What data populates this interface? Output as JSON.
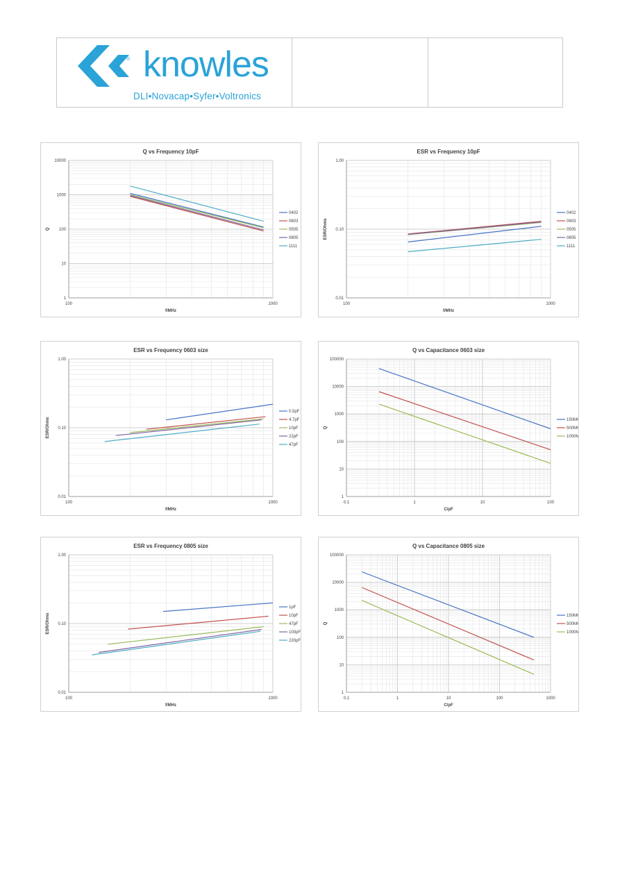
{
  "header": {
    "brand": "knowles",
    "tagline": "DLI•Novacap•Syfer•Voltronics",
    "reg_mark": "®",
    "brand_color": "#2aa3d8"
  },
  "chart_data": [
    {
      "type": "line",
      "title": "Q vs Frequency 10pF",
      "xlabel": "f/MHz",
      "ylabel": "Q",
      "xscale": "log",
      "yscale": "log",
      "xlim": [
        100,
        1000
      ],
      "ylim": [
        1,
        10000
      ],
      "xticks": [
        "100",
        "1000"
      ],
      "yticks": [
        "1",
        "10",
        "100",
        "1000",
        "10000"
      ],
      "legend_position": "right",
      "series": [
        {
          "name": "0402",
          "color": "#4472c4",
          "x": [
            200,
            900
          ],
          "y": [
            1100,
            115
          ]
        },
        {
          "name": "0603",
          "color": "#c0504d",
          "x": [
            200,
            900
          ],
          "y": [
            900,
            88
          ]
        },
        {
          "name": "0505",
          "color": "#9bbb59",
          "x": [
            200,
            900
          ],
          "y": [
            1000,
            110
          ]
        },
        {
          "name": "0805",
          "color": "#8064a2",
          "x": [
            200,
            900
          ],
          "y": [
            950,
            95
          ]
        },
        {
          "name": "1111",
          "color": "#4bacc6",
          "x": [
            200,
            900
          ],
          "y": [
            1800,
            170
          ]
        }
      ]
    },
    {
      "type": "line",
      "title": "ESR vs Frequency 10pF",
      "xlabel": "f/MHz",
      "ylabel": "ESR/Ohms",
      "xscale": "log",
      "yscale": "log",
      "xlim": [
        100,
        1000
      ],
      "ylim": [
        0.01,
        1
      ],
      "xticks": [
        "100",
        "1000"
      ],
      "yticks": [
        "0.01",
        "0.10",
        "1.00"
      ],
      "legend_position": "right",
      "series": [
        {
          "name": "0402",
          "color": "#4472c4",
          "x": [
            200,
            900
          ],
          "y": [
            0.065,
            0.11
          ]
        },
        {
          "name": "0603",
          "color": "#c0504d",
          "x": [
            200,
            900
          ],
          "y": [
            0.085,
            0.13
          ]
        },
        {
          "name": "0505",
          "color": "#9bbb59",
          "x": [
            200,
            900
          ],
          "y": [
            0.083,
            0.125
          ]
        },
        {
          "name": "0805",
          "color": "#8064a2",
          "x": [
            200,
            900
          ],
          "y": [
            0.084,
            0.127
          ]
        },
        {
          "name": "1111",
          "color": "#4bacc6",
          "x": [
            200,
            900
          ],
          "y": [
            0.047,
            0.071
          ]
        }
      ]
    },
    {
      "type": "line",
      "title": "ESR vs Frequency 0603 size",
      "xlabel": "f/MHz",
      "ylabel": "ESR/Ohms",
      "xscale": "log",
      "yscale": "log",
      "xlim": [
        100,
        1000
      ],
      "ylim": [
        0.01,
        1
      ],
      "xticks": [
        "100",
        "1000"
      ],
      "yticks": [
        "0.01",
        "0.10",
        "1.00"
      ],
      "legend_position": "right",
      "series": [
        {
          "name": "0.5pF",
          "color": "#4472c4",
          "x": [
            300,
            1000
          ],
          "y": [
            0.13,
            0.22
          ]
        },
        {
          "name": "4.7pF",
          "color": "#c0504d",
          "x": [
            240,
            920
          ],
          "y": [
            0.095,
            0.145
          ]
        },
        {
          "name": "10pF",
          "color": "#9bbb59",
          "x": [
            200,
            900
          ],
          "y": [
            0.085,
            0.135
          ]
        },
        {
          "name": "22pF",
          "color": "#8064a2",
          "x": [
            170,
            880
          ],
          "y": [
            0.077,
            0.13
          ]
        },
        {
          "name": "47pF",
          "color": "#4bacc6",
          "x": [
            150,
            860
          ],
          "y": [
            0.063,
            0.113
          ]
        }
      ]
    },
    {
      "type": "line",
      "title": "Q vs Capacitance 0603 size",
      "xlabel": "C/pF",
      "ylabel": "Q",
      "xscale": "log",
      "yscale": "log",
      "xlim": [
        0.1,
        100
      ],
      "ylim": [
        1,
        100000
      ],
      "xticks": [
        "0.1",
        "1",
        "10",
        "100"
      ],
      "yticks": [
        "1",
        "10",
        "100",
        "1000",
        "10000",
        "100000"
      ],
      "legend_position": "right",
      "series": [
        {
          "name": "150MHz",
          "color": "#4472c4",
          "x": [
            0.3,
            100
          ],
          "y": [
            45000,
            290
          ]
        },
        {
          "name": "500MHz",
          "color": "#c0504d",
          "x": [
            0.3,
            100
          ],
          "y": [
            6500,
            50
          ]
        },
        {
          "name": "1000MHz",
          "color": "#9bbb59",
          "x": [
            0.3,
            100
          ],
          "y": [
            2300,
            16
          ]
        }
      ]
    },
    {
      "type": "line",
      "title": "ESR vs Frequency 0805 size",
      "xlabel": "f/MHz",
      "ylabel": "ESR/Ohms",
      "xscale": "log",
      "yscale": "log",
      "xlim": [
        100,
        1000
      ],
      "ylim": [
        0.01,
        1
      ],
      "xticks": [
        "100",
        "1000"
      ],
      "yticks": [
        "0.01",
        "0.10",
        "1.00"
      ],
      "legend_position": "right",
      "series": [
        {
          "name": "1pF",
          "color": "#4472c4",
          "x": [
            290,
            1000
          ],
          "y": [
            0.15,
            0.2
          ]
        },
        {
          "name": "10pF",
          "color": "#c0504d",
          "x": [
            195,
            950
          ],
          "y": [
            0.083,
            0.128
          ]
        },
        {
          "name": "47pF",
          "color": "#9bbb59",
          "x": [
            155,
            900
          ],
          "y": [
            0.05,
            0.09
          ]
        },
        {
          "name": "100pF",
          "color": "#8064a2",
          "x": [
            140,
            880
          ],
          "y": [
            0.038,
            0.082
          ]
        },
        {
          "name": "220pF",
          "color": "#4bacc6",
          "x": [
            130,
            870
          ],
          "y": [
            0.035,
            0.077
          ]
        }
      ]
    },
    {
      "type": "line",
      "title": "Q vs Capacitance 0805 size",
      "xlabel": "C/pF",
      "ylabel": "Q",
      "xscale": "log",
      "yscale": "log",
      "xlim": [
        0.1,
        1000
      ],
      "ylim": [
        1,
        100000
      ],
      "xticks": [
        "0.1",
        "1",
        "10",
        "100",
        "1000"
      ],
      "yticks": [
        "1",
        "10",
        "100",
        "1000",
        "10000",
        "100000"
      ],
      "legend_position": "right",
      "series": [
        {
          "name": "150MHz",
          "color": "#4472c4",
          "x": [
            0.2,
            470
          ],
          "y": [
            24000,
            100
          ]
        },
        {
          "name": "500MHz",
          "color": "#c0504d",
          "x": [
            0.2,
            470
          ],
          "y": [
            6500,
            15
          ]
        },
        {
          "name": "1000MHz",
          "color": "#9bbb59",
          "x": [
            0.2,
            470
          ],
          "y": [
            2200,
            4.5
          ]
        }
      ]
    }
  ]
}
